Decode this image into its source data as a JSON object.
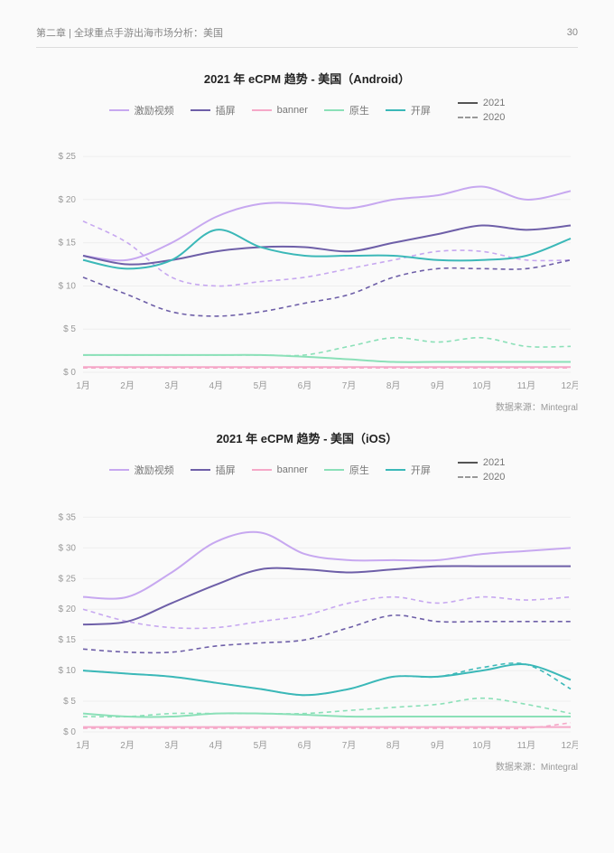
{
  "header": {
    "breadcrumb": "第二章  |  全球重点手游出海市场分析：美国",
    "page_number": "30"
  },
  "colors": {
    "rewarded_video": "#c7a8f0",
    "interstitial": "#6e5fa8",
    "banner": "#f5a8c8",
    "native": "#8be0b8",
    "splash": "#3bb8b8",
    "year_solid": "#555555",
    "year_dash": "#999999",
    "grid": "#eeeeee",
    "axis_text": "#999999"
  },
  "legend": {
    "series": [
      {
        "key": "rewarded_video",
        "label": "激励视频"
      },
      {
        "key": "interstitial",
        "label": "插屏"
      },
      {
        "key": "banner",
        "label": "banner"
      },
      {
        "key": "native",
        "label": "原生"
      },
      {
        "key": "splash",
        "label": "开屏"
      }
    ],
    "year_solid_label": "2021",
    "year_dash_label": "2020"
  },
  "charts": [
    {
      "title": "2021 年 eCPM 趋势 - 美国（Android）",
      "source": "数据来源：Mintegral",
      "x_labels": [
        "1月",
        "2月",
        "3月",
        "4月",
        "5月",
        "6月",
        "7月",
        "8月",
        "9月",
        "10月",
        "11月",
        "12月"
      ],
      "y_ticks": [
        0,
        5,
        10,
        15,
        20,
        25
      ],
      "y_prefix": "$ ",
      "ylim": [
        0,
        27
      ],
      "series_solid": {
        "rewarded_video": [
          13.5,
          13,
          15,
          18,
          19.5,
          19.5,
          19,
          20,
          20.5,
          21.5,
          20,
          21
        ],
        "interstitial": [
          13.5,
          12.5,
          13,
          14,
          14.5,
          14.5,
          14,
          15,
          16,
          17,
          16.5,
          17
        ],
        "banner": [
          0.6,
          0.6,
          0.6,
          0.6,
          0.6,
          0.6,
          0.6,
          0.6,
          0.6,
          0.6,
          0.6,
          0.6
        ],
        "native": [
          2,
          2,
          2,
          2,
          2,
          1.8,
          1.5,
          1.2,
          1.2,
          1.2,
          1.2,
          1.2
        ],
        "splash": [
          13,
          12,
          13,
          16.5,
          14.5,
          13.5,
          13.5,
          13.5,
          13,
          13,
          13.5,
          15.5
        ]
      },
      "series_dash": {
        "rewarded_video": [
          17.5,
          15,
          11,
          10,
          10.5,
          11,
          12,
          13,
          14,
          14,
          13,
          13
        ],
        "interstitial": [
          11,
          9,
          7,
          6.5,
          7,
          8,
          9,
          11,
          12,
          12,
          12,
          13
        ],
        "banner": [
          0.5,
          0.5,
          0.5,
          0.5,
          0.5,
          0.5,
          0.5,
          0.5,
          0.5,
          0.5,
          0.5,
          0.5
        ],
        "native": [
          2,
          2,
          2,
          2,
          2,
          2,
          3,
          4,
          3.5,
          4,
          3,
          3
        ]
      }
    },
    {
      "title": "2021 年 eCPM 趋势 - 美国（iOS）",
      "source": "数据来源：Mintegral",
      "x_labels": [
        "1月",
        "2月",
        "3月",
        "4月",
        "5月",
        "6月",
        "7月",
        "8月",
        "9月",
        "10月",
        "11月",
        "12月"
      ],
      "y_ticks": [
        0,
        5,
        10,
        15,
        20,
        25,
        30,
        35
      ],
      "y_prefix": "$ ",
      "ylim": [
        0,
        38
      ],
      "series_solid": {
        "rewarded_video": [
          22,
          22,
          26,
          31,
          32.5,
          29,
          28,
          28,
          28,
          29,
          29.5,
          30
        ],
        "interstitial": [
          17.5,
          18,
          21,
          24,
          26.5,
          26.5,
          26,
          26.5,
          27,
          27,
          27,
          27
        ],
        "banner": [
          0.8,
          0.8,
          0.8,
          0.8,
          0.8,
          0.8,
          0.8,
          0.8,
          0.8,
          0.8,
          0.8,
          0.8
        ],
        "native": [
          3,
          2.5,
          2.5,
          3,
          3,
          2.8,
          2.5,
          2.5,
          2.5,
          2.5,
          2.5,
          2.5
        ],
        "splash": [
          10,
          9.5,
          9,
          8,
          7,
          6,
          7,
          9,
          9,
          10,
          11,
          8.5
        ]
      },
      "series_dash": {
        "rewarded_video": [
          20,
          18,
          17,
          17,
          18,
          19,
          21,
          22,
          21,
          22,
          21.5,
          22
        ],
        "interstitial": [
          13.5,
          13,
          13,
          14,
          14.5,
          15,
          17,
          19,
          18,
          18,
          18,
          18
        ],
        "banner": [
          0.6,
          0.6,
          0.6,
          0.6,
          0.6,
          0.6,
          0.6,
          0.6,
          0.6,
          0.6,
          0.6,
          1.5
        ],
        "native": [
          2.5,
          2.5,
          3,
          3,
          3,
          3,
          3.5,
          4,
          4.5,
          5.5,
          4.5,
          3
        ],
        "splash": [
          10,
          9.5,
          9,
          8,
          7,
          6,
          7,
          9,
          9,
          10.5,
          11,
          7
        ]
      }
    }
  ]
}
